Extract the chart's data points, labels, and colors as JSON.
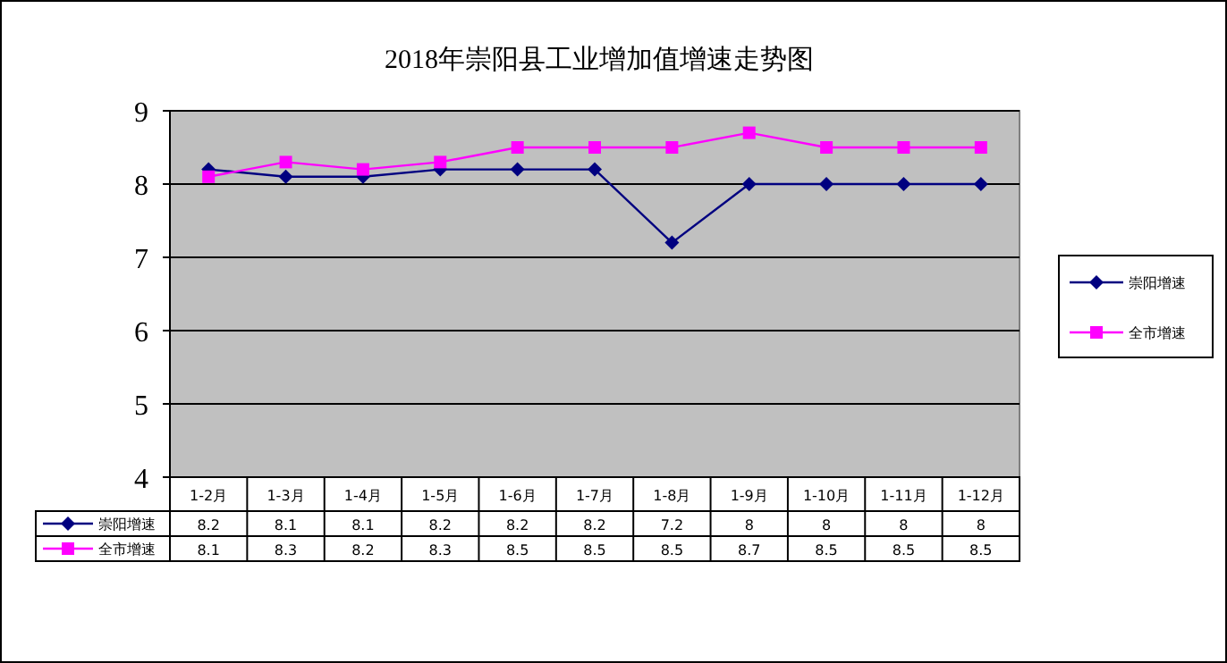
{
  "chart_data": {
    "type": "line",
    "title": "2018年崇阳县工业增加值增速走势图",
    "categories": [
      "1-2月",
      "1-3月",
      "1-4月",
      "1-5月",
      "1-6月",
      "1-7月",
      "1-8月",
      "1-9月",
      "1-10月",
      "1-11月",
      "1-12月"
    ],
    "series": [
      {
        "name": "崇阳增速",
        "color": "#000080",
        "marker": "diamond",
        "values": [
          8.2,
          8.1,
          8.1,
          8.2,
          8.2,
          8.2,
          7.2,
          8,
          8,
          8,
          8
        ]
      },
      {
        "name": "全市增速",
        "color": "#ff00ff",
        "marker": "square",
        "values": [
          8.1,
          8.3,
          8.2,
          8.3,
          8.5,
          8.5,
          8.5,
          8.7,
          8.5,
          8.5,
          8.5
        ]
      }
    ],
    "ylim": [
      4,
      9
    ],
    "yticks": [
      4,
      5,
      6,
      7,
      8,
      9
    ],
    "grid": "y",
    "legend": "right",
    "data_labels": true
  }
}
